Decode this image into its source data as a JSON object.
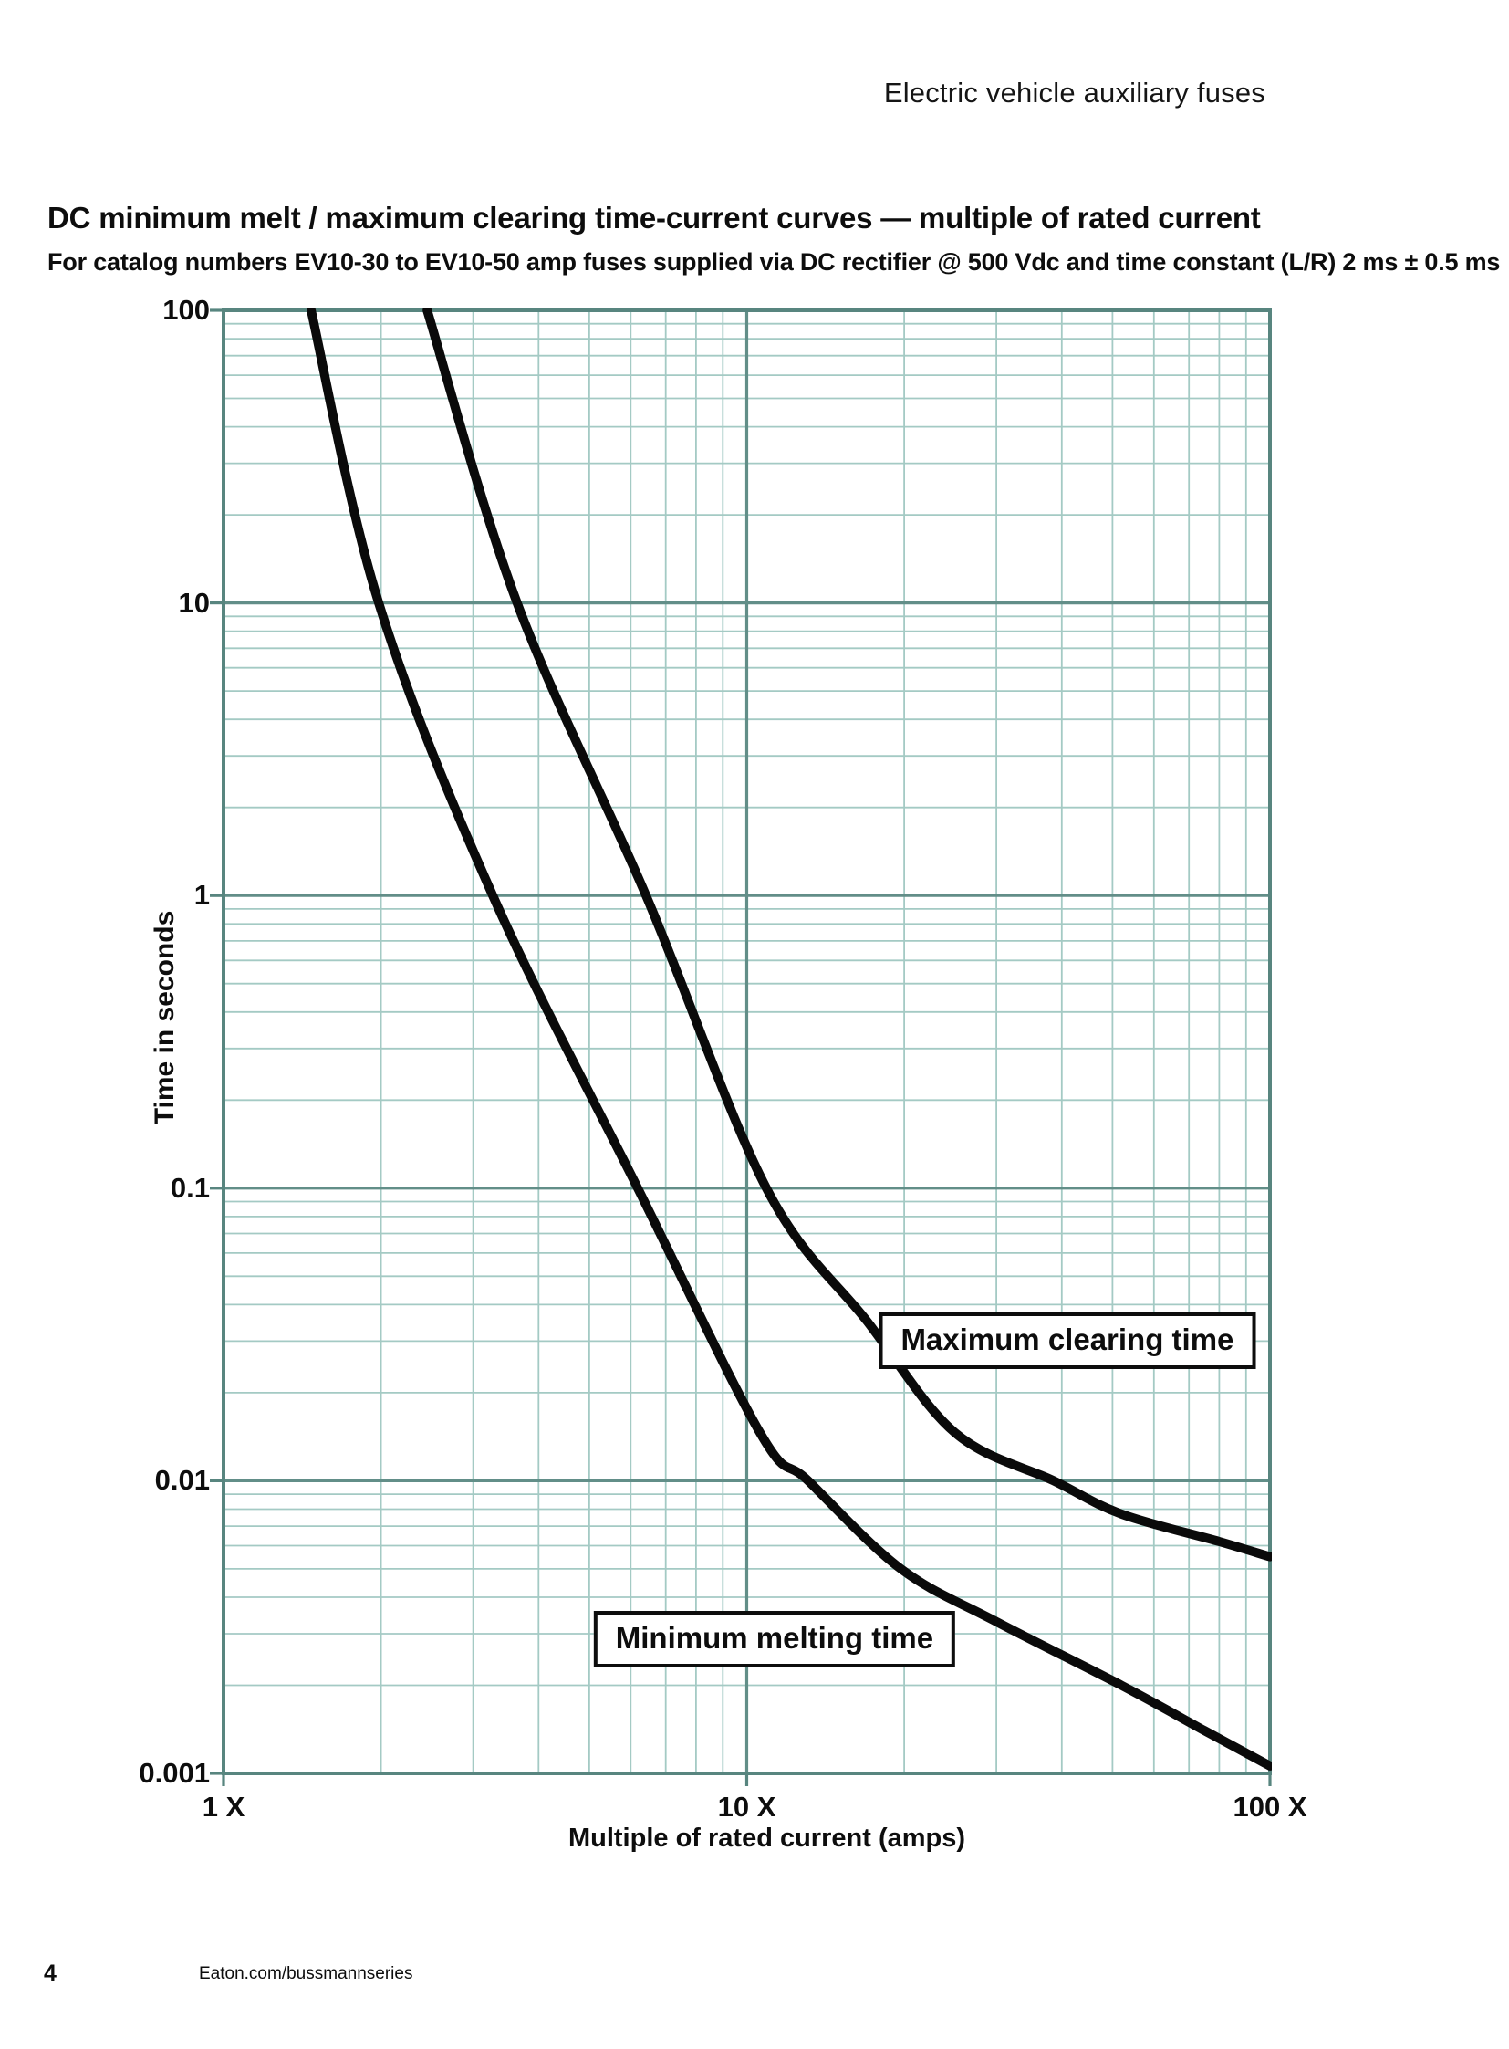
{
  "header": {
    "product_family": "Electric vehicle auxiliary fuses"
  },
  "section": {
    "title": "DC minimum melt / maximum clearing time-current curves — multiple of rated current",
    "subtitle": "For catalog numbers EV10-30 to EV10-50 amp fuses supplied via DC rectifier @ 500 Vdc and time constant (L/R) 2 ms ± 0.5 ms"
  },
  "footer": {
    "page_number": "4",
    "website": "Eaton.com/bussmannseries"
  },
  "colors": {
    "grid_minor": "#a4cac4",
    "grid_major": "#628e88",
    "frame": "#58857f",
    "curve": "#0a0a0a",
    "text": "#0d0d0d",
    "background": "#ffffff"
  },
  "chart_data": {
    "type": "line",
    "x_scale": "log",
    "y_scale": "log",
    "xlim": [
      1,
      100
    ],
    "ylim": [
      0.001,
      100
    ],
    "grid": "log major + minor gridlines on both axes",
    "xlabel": "Multiple of rated current (amps)",
    "ylabel": "Time in seconds",
    "x_ticks": [
      {
        "value": 1,
        "label": "1 X"
      },
      {
        "value": 10,
        "label": "10 X"
      },
      {
        "value": 100,
        "label": "100 X"
      }
    ],
    "y_ticks": [
      {
        "value": 100,
        "label": "100"
      },
      {
        "value": 10,
        "label": "10"
      },
      {
        "value": 1,
        "label": "1"
      },
      {
        "value": 0.1,
        "label": "0.1"
      },
      {
        "value": 0.01,
        "label": "0.01"
      },
      {
        "value": 0.001,
        "label": "0.001"
      }
    ],
    "series": [
      {
        "name": "Minimum melting time",
        "points": [
          [
            1.47,
            100
          ],
          [
            1.98,
            10
          ],
          [
            3.27,
            1
          ],
          [
            6.19,
            0.1
          ],
          [
            10.6,
            0.0146
          ],
          [
            13.1,
            0.01
          ],
          [
            19.7,
            0.005
          ],
          [
            30,
            0.0033
          ],
          [
            52,
            0.002
          ],
          [
            75,
            0.0014
          ],
          [
            100,
            0.00106
          ]
        ]
      },
      {
        "name": "Maximum clearing time",
        "points": [
          [
            2.45,
            100
          ],
          [
            3.64,
            10
          ],
          [
            6.42,
            1
          ],
          [
            10.9,
            0.1
          ],
          [
            17,
            0.035
          ],
          [
            25,
            0.0146
          ],
          [
            38.6,
            0.01
          ],
          [
            52,
            0.0077
          ],
          [
            80,
            0.0062
          ],
          [
            100,
            0.0055
          ]
        ]
      }
    ],
    "annotations": [
      {
        "text": "Maximum clearing time",
        "anchor_multiple": 41,
        "anchor_seconds": 0.0301
      },
      {
        "text": "Minimum melting time",
        "anchor_multiple": 11.3,
        "anchor_seconds": 0.00288
      }
    ]
  }
}
